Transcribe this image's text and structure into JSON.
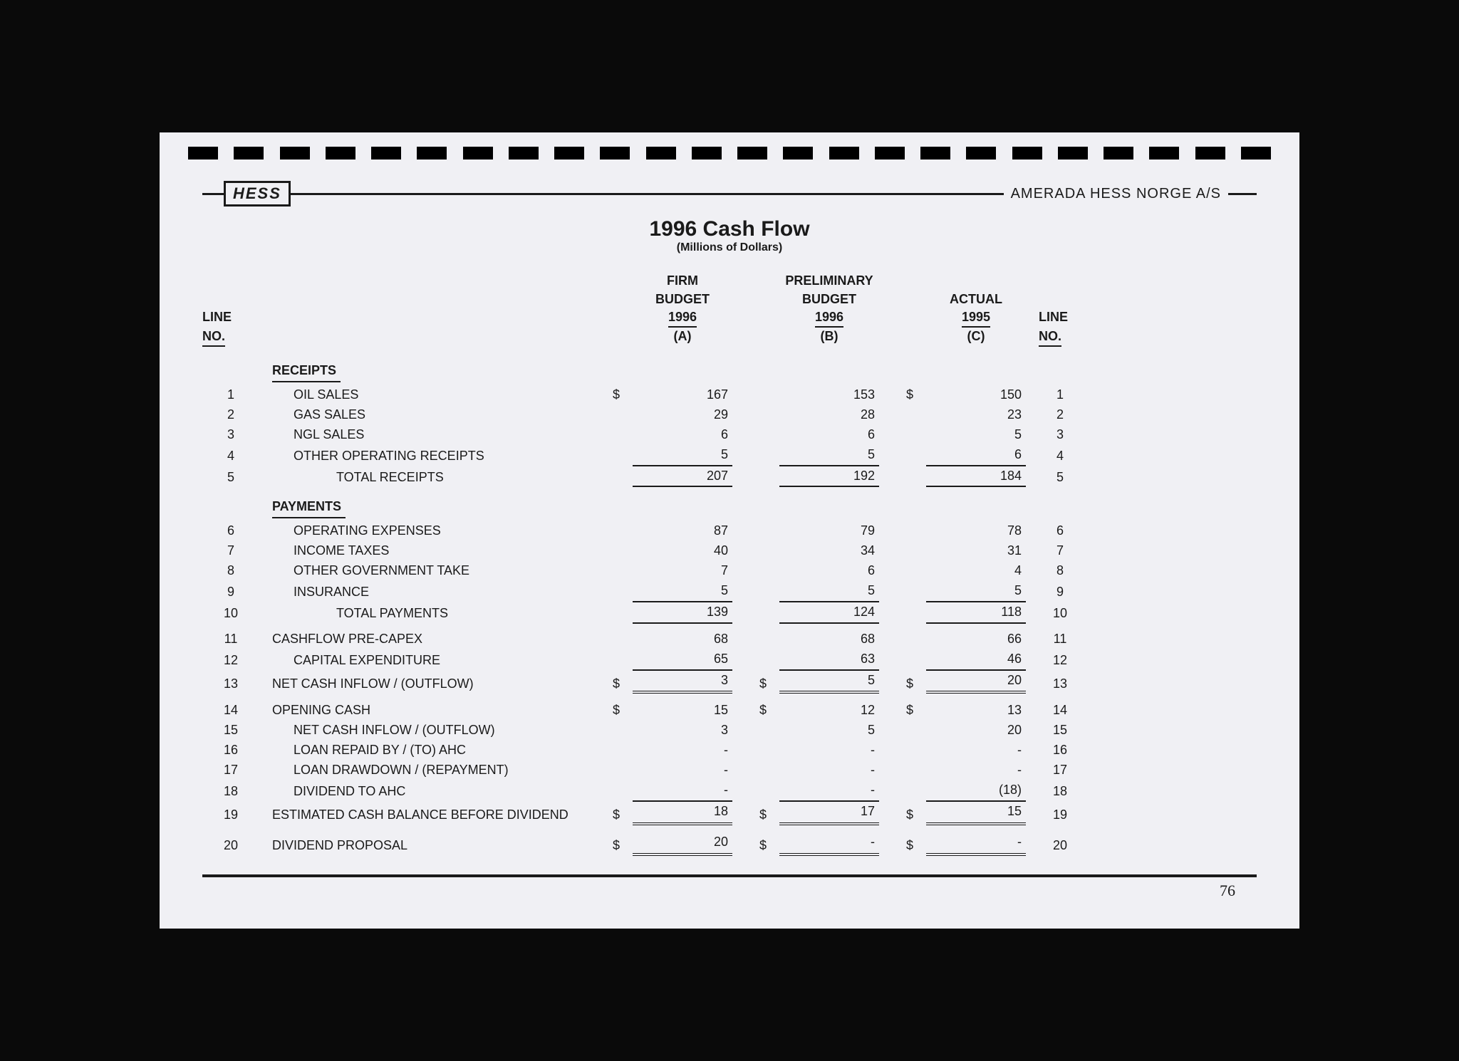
{
  "logo": "HESS",
  "company": "AMERADA HESS NORGE A/S",
  "title": "1996 Cash Flow",
  "subtitle": "(Millions of Dollars)",
  "colheads": {
    "line_no": "LINE",
    "no": "NO.",
    "a_l1": "FIRM",
    "a_l2": "BUDGET",
    "a_l3": "1996",
    "a_l4": "(A)",
    "b_l1": "PRELIMINARY",
    "b_l2": "BUDGET",
    "b_l3": "1996",
    "b_l4": "(B)",
    "c_l1": "",
    "c_l2": "ACTUAL",
    "c_l3": "1995",
    "c_l4": "(C)"
  },
  "sections": {
    "receipts": "RECEIPTS",
    "payments": "PAYMENTS"
  },
  "rows": [
    {
      "n": "1",
      "d": "OIL SALES",
      "i": 1,
      "sa": "$",
      "a": "167",
      "b": "153",
      "sc": "$",
      "c": "150"
    },
    {
      "n": "2",
      "d": "GAS SALES",
      "i": 1,
      "a": "29",
      "b": "28",
      "c": "23"
    },
    {
      "n": "3",
      "d": "NGL SALES",
      "i": 1,
      "a": "6",
      "b": "6",
      "c": "5"
    },
    {
      "n": "4",
      "d": "OTHER OPERATING RECEIPTS",
      "i": 1,
      "a": "5",
      "b": "5",
      "c": "6",
      "ua": "usingle",
      "ub": "usingle",
      "uc": "usingle"
    },
    {
      "n": "5",
      "d": "TOTAL RECEIPTS",
      "i": 2,
      "a": "207",
      "b": "192",
      "c": "184",
      "ua": "usingle",
      "ub": "usingle",
      "uc": "usingle"
    },
    {
      "n": "6",
      "d": "OPERATING EXPENSES",
      "i": 1,
      "a": "87",
      "b": "79",
      "c": "78"
    },
    {
      "n": "7",
      "d": "INCOME TAXES",
      "i": 1,
      "a": "40",
      "b": "34",
      "c": "31"
    },
    {
      "n": "8",
      "d": "OTHER GOVERNMENT TAKE",
      "i": 1,
      "a": "7",
      "b": "6",
      "c": "4"
    },
    {
      "n": "9",
      "d": "INSURANCE",
      "i": 1,
      "a": "5",
      "b": "5",
      "c": "5",
      "ua": "usingle",
      "ub": "usingle",
      "uc": "usingle"
    },
    {
      "n": "10",
      "d": "TOTAL PAYMENTS",
      "i": 2,
      "a": "139",
      "b": "124",
      "c": "118",
      "ua": "usingle",
      "ub": "usingle",
      "uc": "usingle"
    },
    {
      "n": "11",
      "d": "CASHFLOW PRE-CAPEX",
      "i": 0,
      "a": "68",
      "b": "68",
      "c": "66"
    },
    {
      "n": "12",
      "d": "CAPITAL EXPENDITURE",
      "i": 1,
      "a": "65",
      "b": "63",
      "c": "46",
      "ua": "usingle",
      "ub": "usingle",
      "uc": "usingle"
    },
    {
      "n": "13",
      "d": "NET CASH INFLOW / (OUTFLOW)",
      "i": 0,
      "sa": "$",
      "a": "3",
      "sb": "$",
      "b": "5",
      "sc": "$",
      "c": "20",
      "ua": "udouble",
      "ub": "udouble",
      "uc": "udouble"
    },
    {
      "n": "14",
      "d": "OPENING CASH",
      "i": 0,
      "sa": "$",
      "a": "15",
      "sb": "$",
      "b": "12",
      "sc": "$",
      "c": "13"
    },
    {
      "n": "15",
      "d": "NET CASH INFLOW / (OUTFLOW)",
      "i": 1,
      "a": "3",
      "b": "5",
      "c": "20"
    },
    {
      "n": "16",
      "d": "LOAN REPAID BY / (TO) AHC",
      "i": 1,
      "a": "-",
      "b": "-",
      "c": "-"
    },
    {
      "n": "17",
      "d": "LOAN DRAWDOWN / (REPAYMENT)",
      "i": 1,
      "a": "-",
      "b": "-",
      "c": "-"
    },
    {
      "n": "18",
      "d": "DIVIDEND TO AHC",
      "i": 1,
      "a": "-",
      "b": "-",
      "c": "(18)",
      "ua": "usingle",
      "ub": "usingle",
      "uc": "usingle"
    },
    {
      "n": "19",
      "d": "ESTIMATED CASH BALANCE BEFORE DIVIDEND",
      "i": 0,
      "sa": "$",
      "a": "18",
      "sb": "$",
      "b": "17",
      "sc": "$",
      "c": "15",
      "ua": "udouble",
      "ub": "udouble",
      "uc": "udouble"
    },
    {
      "n": "20",
      "d": "DIVIDEND PROPOSAL",
      "i": 0,
      "sa": "$",
      "a": "20",
      "sb": "$",
      "b": "-",
      "sc": "$",
      "c": "-",
      "ua": "udouble",
      "ub": "udouble",
      "uc": "udouble"
    }
  ],
  "pagenum": "76",
  "style": {
    "page_bg": "#f0f0f4",
    "text_color": "#1a1a1a",
    "body_bg": "#0a0a0a",
    "perf_count": 24
  }
}
